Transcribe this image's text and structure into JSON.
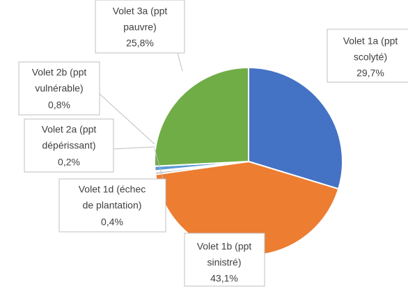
{
  "chart_data": {
    "type": "pie",
    "categories": [
      [
        "Volet 1a (ppt",
        "scolyté)"
      ],
      [
        "Volet 1b (ppt",
        "sinistré)"
      ],
      [
        "Volet 1d (échec",
        "de plantation)"
      ],
      [
        "Volet 2a (ppt",
        "dépérissant)"
      ],
      [
        "Volet 2b (ppt",
        "vulnérable)"
      ],
      [
        "Volet 3a (ppt",
        "pauvre)"
      ]
    ],
    "values": [
      29.7,
      43.1,
      0.4,
      0.2,
      0.8,
      25.8
    ],
    "value_labels": [
      "29,7%",
      "43,1%",
      "0,4%",
      "0,2%",
      "0,8%",
      "25,8%"
    ],
    "colors": [
      "#4472c4",
      "#ed7d31",
      "#a5a5a5",
      "#ffc000",
      "#5b9bd5",
      "#70ad47"
    ]
  }
}
